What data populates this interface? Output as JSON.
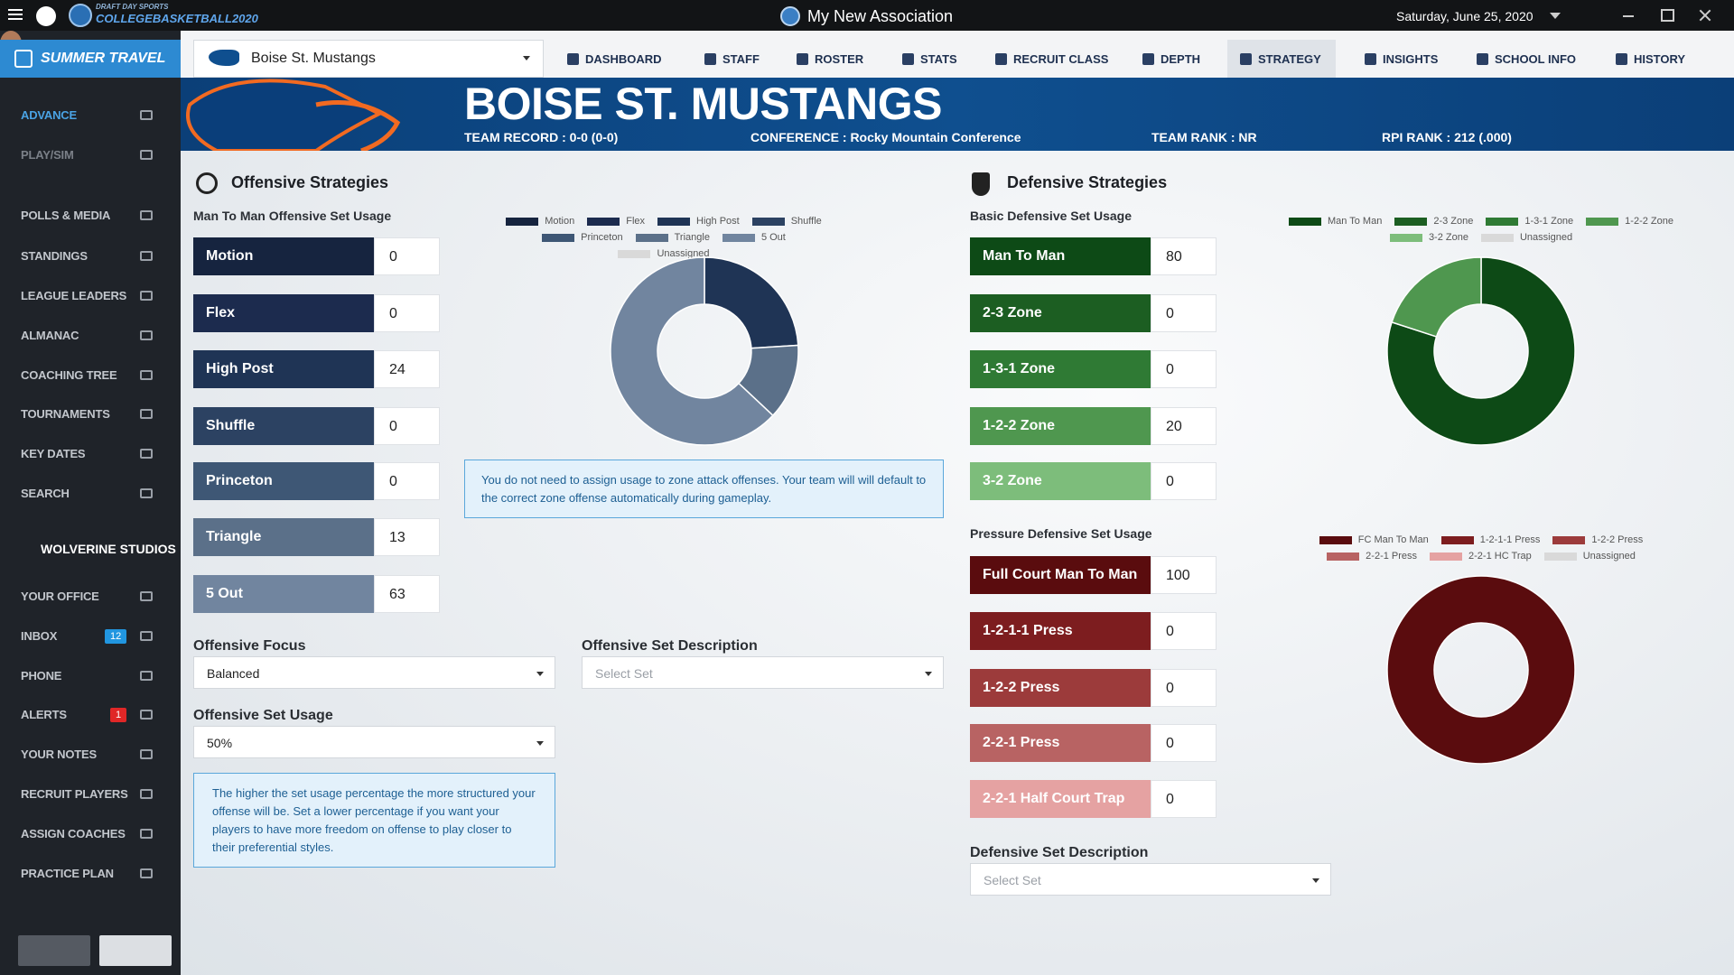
{
  "titlebar": {
    "brand": "DRAFT DAY SPORTS",
    "product": "COLLEGEBASKETBALL2020",
    "association": "My New Association",
    "date": "Saturday, June 25, 2020"
  },
  "sidebar": {
    "phase": "SUMMER TRAVEL",
    "game_items": [
      {
        "label": "ADVANCE",
        "active": true
      },
      {
        "label": "PLAY/SIM",
        "active": false
      }
    ],
    "league_items": [
      "POLLS & MEDIA",
      "STANDINGS",
      "LEAGUE LEADERS",
      "ALMANAC",
      "COACHING TREE",
      "TOURNAMENTS",
      "KEY DATES",
      "SEARCH"
    ],
    "studio": "WOLVERINE STUDIOS",
    "office_items": [
      {
        "label": "YOUR OFFICE"
      },
      {
        "label": "INBOX",
        "badge": 12,
        "badge_color": "#2196e0"
      },
      {
        "label": "PHONE"
      },
      {
        "label": "ALERTS",
        "badge": 1,
        "badge_color": "#e02727"
      },
      {
        "label": "YOUR NOTES"
      },
      {
        "label": "RECRUIT PLAYERS"
      },
      {
        "label": "ASSIGN COACHES"
      },
      {
        "label": "PRACTICE PLAN"
      }
    ]
  },
  "team_selector": "Boise St. Mustangs",
  "nav": [
    {
      "label": "DASHBOARD",
      "active": false
    },
    {
      "label": "STAFF",
      "active": false
    },
    {
      "label": "ROSTER",
      "active": false
    },
    {
      "label": "STATS",
      "active": false
    },
    {
      "label": "RECRUIT CLASS",
      "active": false
    },
    {
      "label": "DEPTH",
      "active": false
    },
    {
      "label": "STRATEGY",
      "active": true
    },
    {
      "label": "INSIGHTS",
      "active": false
    },
    {
      "label": "SCHOOL INFO",
      "active": false
    },
    {
      "label": "HISTORY",
      "active": false
    }
  ],
  "banner": {
    "team": "BOISE ST. MUSTANGS",
    "record": "TEAM RECORD : 0-0 (0-0)",
    "conference": "CONFERENCE : Rocky Mountain Conference",
    "rank": "TEAM RANK : NR",
    "rpi": "RPI RANK : 212 (.000)"
  },
  "offense": {
    "title": "Offensive Strategies",
    "usage": {
      "title": "Man To Man Offensive Set Usage",
      "sets": [
        {
          "name": "Motion",
          "value": 0,
          "color": "#16243f"
        },
        {
          "name": "Flex",
          "value": 0,
          "color": "#1c2b4e"
        },
        {
          "name": "High Post",
          "value": 24,
          "color": "#1f3455"
        },
        {
          "name": "Shuffle",
          "value": 0,
          "color": "#2c4262"
        },
        {
          "name": "Princeton",
          "value": 0,
          "color": "#3e5775"
        },
        {
          "name": "Triangle",
          "value": 13,
          "color": "#5b7089"
        },
        {
          "name": "5 Out",
          "value": 63,
          "color": "#71859f"
        }
      ],
      "unassigned": {
        "name": "Unassigned",
        "color": "#d9d9d9"
      }
    },
    "zone_note": "You do not need to assign usage to zone attack offenses. Your team will will default to the correct zone offense automatically during gameplay.",
    "focus": {
      "label": "Offensive Focus",
      "value": "Balanced"
    },
    "set_description": {
      "label": "Offensive Set Description",
      "placeholder": "Select Set"
    },
    "set_usage": {
      "label": "Offensive Set Usage",
      "value": "50%"
    },
    "usage_note": "The higher the set usage percentage the more structured your offense will be. Set a lower percentage if you want your players to have more freedom on offense to play closer to their preferential styles."
  },
  "defense": {
    "title": "Defensive Strategies",
    "basic": {
      "title": "Basic Defensive Set Usage",
      "sets": [
        {
          "name": "Man To Man",
          "value": 80,
          "color": "#0d4a16"
        },
        {
          "name": "2-3 Zone",
          "value": 0,
          "color": "#1c5e22"
        },
        {
          "name": "1-3-1 Zone",
          "value": 0,
          "color": "#2f7a34"
        },
        {
          "name": "1-2-2 Zone",
          "value": 20,
          "color": "#4f974f"
        },
        {
          "name": "3-2 Zone",
          "value": 0,
          "color": "#7dbd7b"
        }
      ],
      "unassigned": {
        "name": "Unassigned",
        "color": "#d9d9d9"
      }
    },
    "pressure": {
      "title": "Pressure Defensive Set Usage",
      "sets": [
        {
          "name": "Full Court Man To Man",
          "short": "FC Man To Man",
          "value": 100,
          "color": "#5a0c0e"
        },
        {
          "name": "1-2-1-1 Press",
          "value": 0,
          "color": "#7d1d1f"
        },
        {
          "name": "1-2-2 Press",
          "value": 0,
          "color": "#9c3b3b"
        },
        {
          "name": "2-2-1 Press",
          "value": 0,
          "color": "#b86363"
        },
        {
          "name": "2-2-1 Half Court Trap",
          "short": "2-2-1 HC Trap",
          "value": 0,
          "color": "#e5a2a2"
        }
      ],
      "unassigned": {
        "name": "Unassigned",
        "color": "#d9d9d9"
      }
    },
    "set_description": {
      "label": "Defensive Set Description",
      "placeholder": "Select Set"
    }
  }
}
